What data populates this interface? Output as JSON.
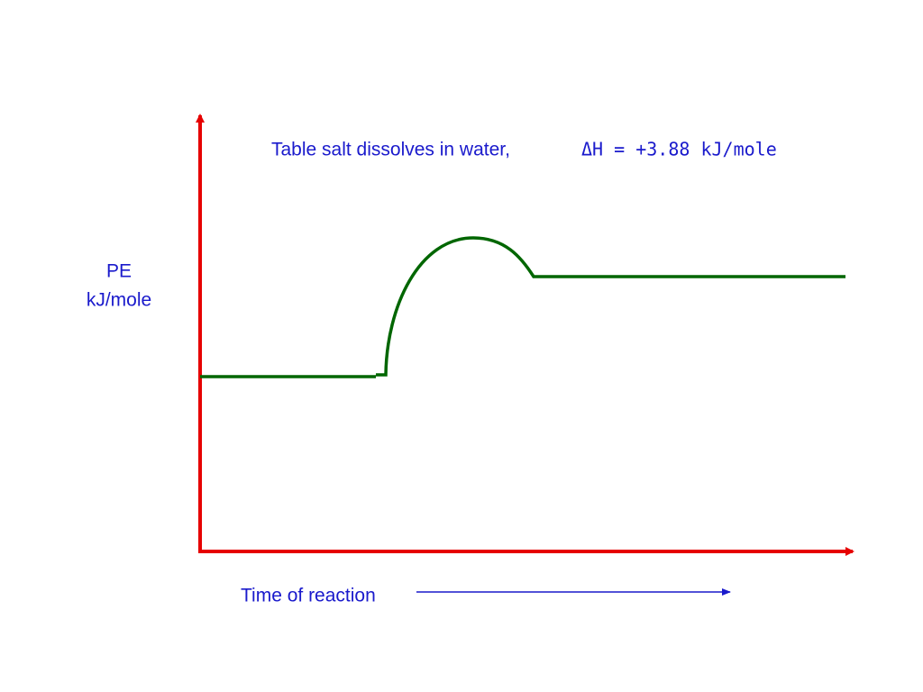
{
  "title": {
    "text": "Table salt dissolves in water,",
    "equation": "ΔH = +3.88 kJ/mole"
  },
  "y_axis_label": [
    "PE",
    "kJ/mole"
  ],
  "x_axis_label": "Time of reaction"
}
